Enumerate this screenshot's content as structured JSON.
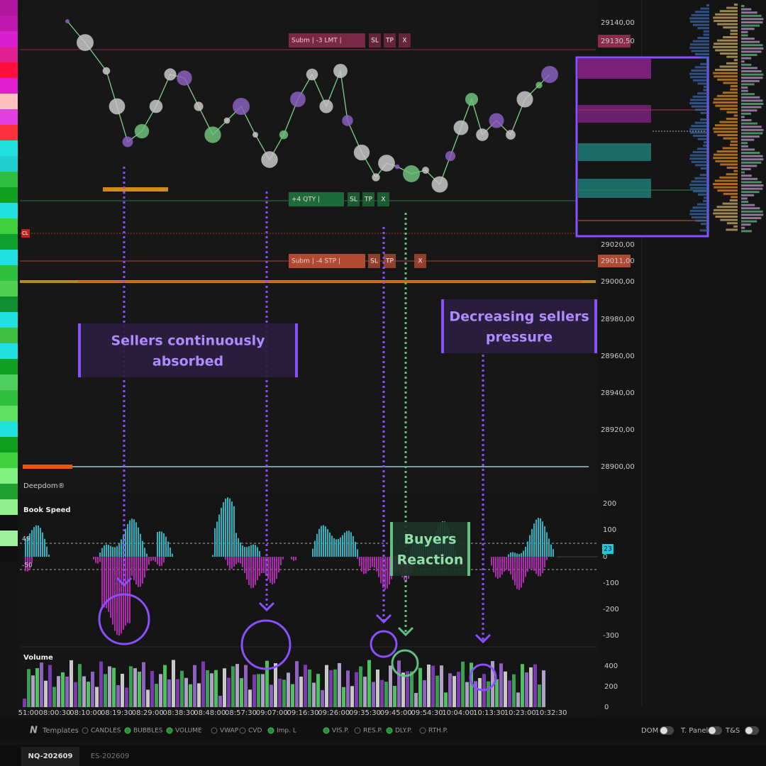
{
  "marker": "CL",
  "price_axis": [
    "29140,00",
    "29130,50",
    "29020,00",
    "29011,00",
    "29000,00",
    "28980,00",
    "28960,00",
    "28940,00",
    "28920,00",
    "28900,00"
  ],
  "orders": [
    {
      "label": "Subm | -3 LMT |",
      "buttons": [
        "SL",
        "TP",
        "X"
      ]
    },
    {
      "label": "+4 QTY |",
      "buttons": [
        "SL",
        "TP",
        "X"
      ]
    },
    {
      "label": "Subm | -4 STP |",
      "buttons": [
        "SL",
        "TP",
        "X"
      ]
    }
  ],
  "annotations": [
    {
      "lines": [
        "Sellers continuously",
        "absorbed"
      ]
    },
    {
      "lines": [
        "Decreasing sellers",
        "pressure"
      ]
    },
    {
      "lines": [
        "Buyers",
        "Reaction"
      ]
    }
  ],
  "panels": {
    "deepdom": "Deepdom®",
    "book_speed": {
      "title": "Book Speed",
      "ticks": [
        "200",
        "100",
        "0",
        "-100",
        "-200",
        "-300"
      ],
      "levels": [
        "49",
        "-50"
      ],
      "current": "23"
    },
    "volume": {
      "title": "Volume",
      "ticks": [
        "400",
        "200",
        "0"
      ]
    }
  },
  "time_axis": [
    "51:00",
    "08:00:30",
    "08:10:00",
    "08:19:30",
    "08:29:00",
    "08:38:30",
    "08:48:00",
    "08:57:30",
    "09:07:00",
    "09:16:30",
    "09:26:00",
    "09:35:30",
    "09:45:00",
    "09:54:30",
    "10:04:00",
    "10:13:30",
    "10:23:00",
    "10:32:30"
  ],
  "toolbar": {
    "templates": "Templates",
    "toggles": [
      {
        "label": "CANDLES",
        "on": false
      },
      {
        "label": "BUBBLES",
        "on": true
      },
      {
        "label": "VOLUME",
        "on": true
      },
      {
        "label": "VWAP",
        "on": false
      },
      {
        "label": "CVD",
        "on": false
      },
      {
        "label": "Imp. L",
        "on": true
      },
      {
        "label": "VIS.P.",
        "on": true
      },
      {
        "label": "RES.P.",
        "on": false
      },
      {
        "label": "DLY.P.",
        "on": true
      },
      {
        "label": "RTH.P.",
        "on": false
      }
    ],
    "right": [
      "DOM",
      "T. Panel",
      "T&S"
    ]
  },
  "tabs": [
    "NQ-202609",
    "ES-202609"
  ]
}
